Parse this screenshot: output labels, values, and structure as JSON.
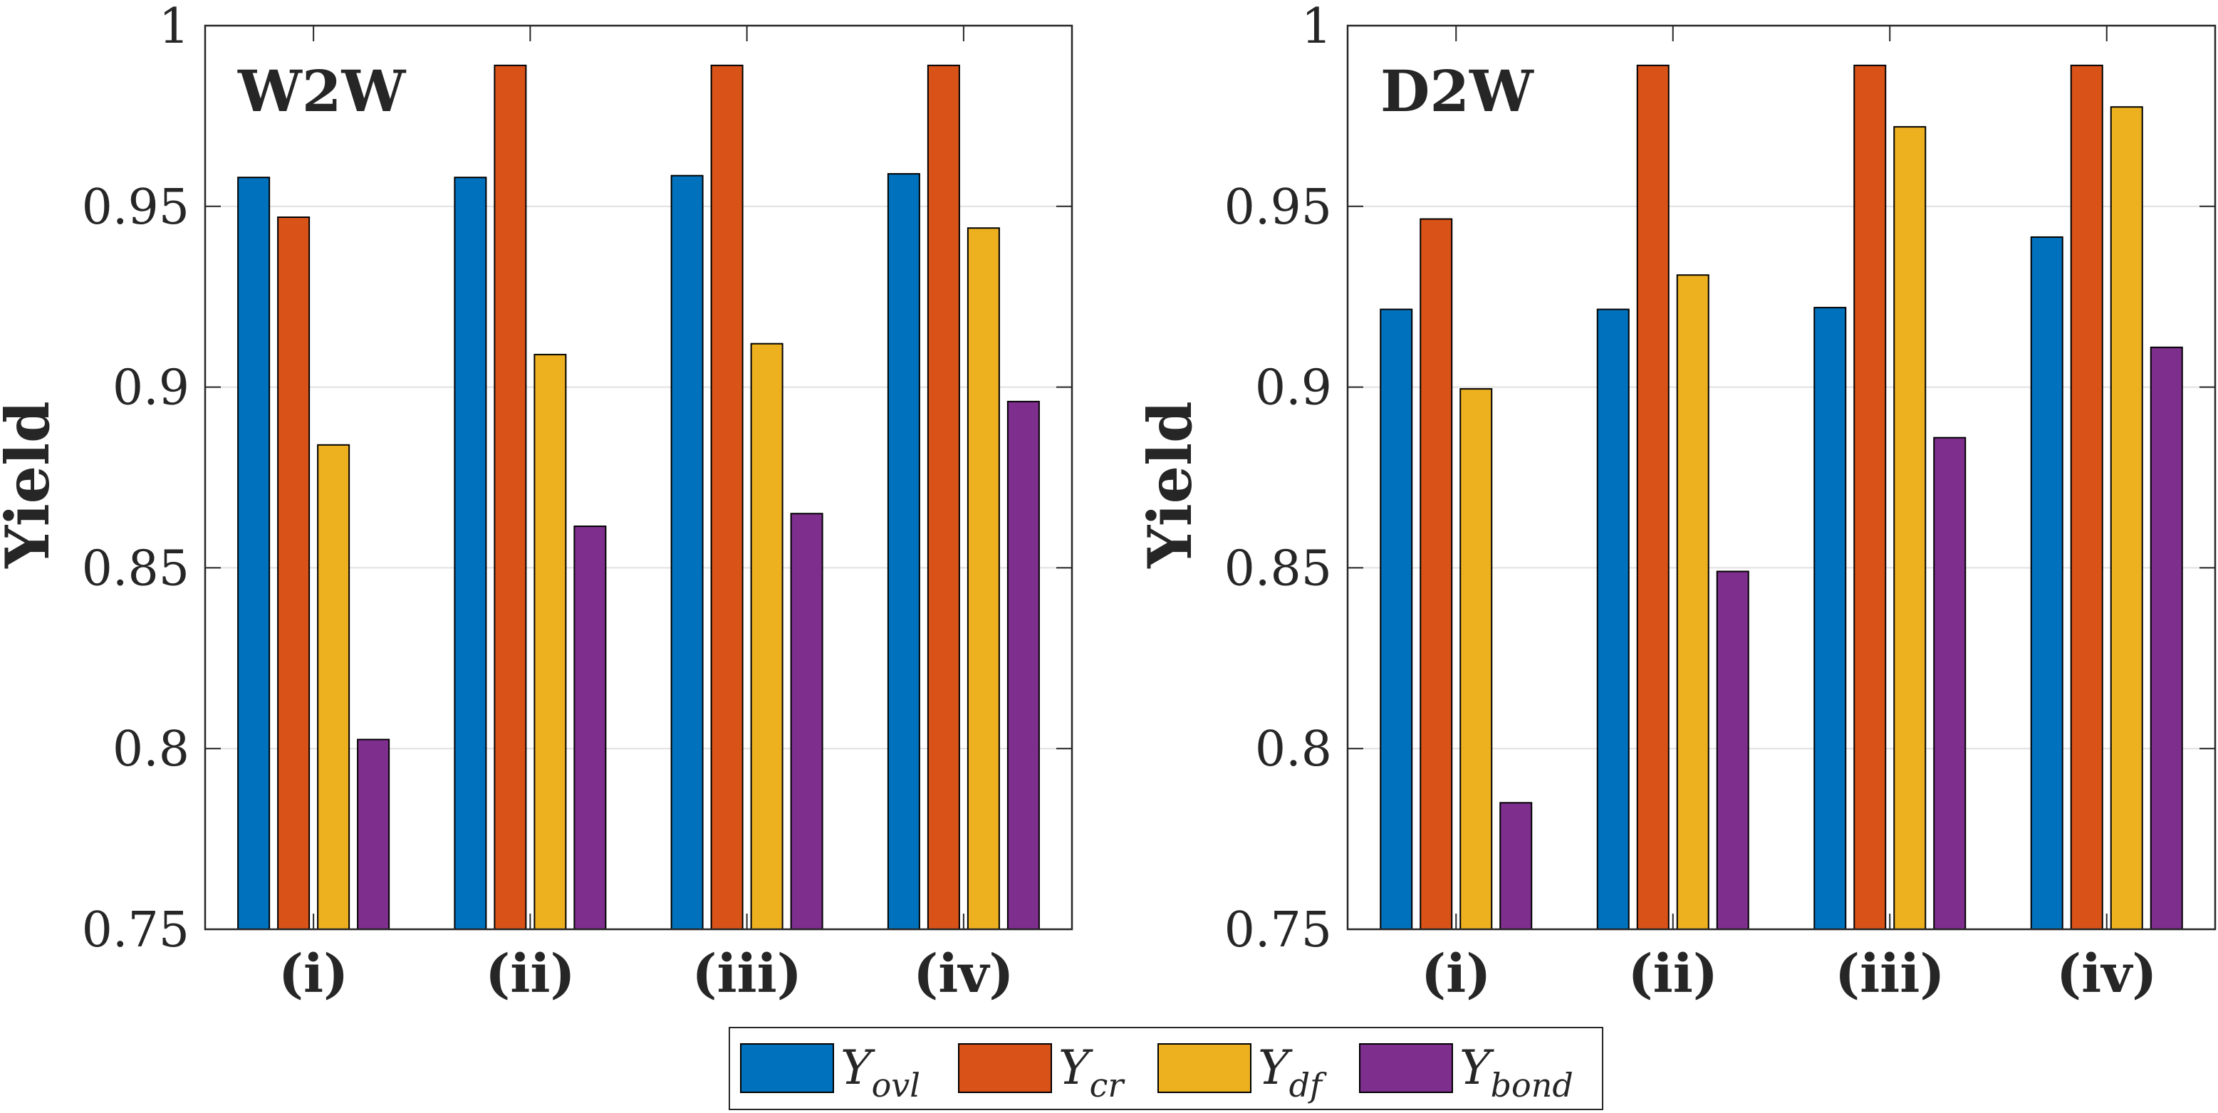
{
  "chart_data": [
    {
      "type": "bar",
      "title": "W2W",
      "xlabel": "",
      "ylabel": "Yield",
      "ylim": [
        0.75,
        1
      ],
      "yticks": [
        "0.75",
        "0.8",
        "0.85",
        "0.9",
        "0.95",
        "1"
      ],
      "grid": true,
      "categories": [
        "(i)",
        "(ii)",
        "(iii)",
        "(iv)"
      ],
      "series": [
        {
          "name": "Y_ovl",
          "values": [
            0.958,
            0.958,
            0.9585,
            0.959
          ]
        },
        {
          "name": "Y_cr",
          "values": [
            0.947,
            0.989,
            0.989,
            0.989
          ]
        },
        {
          "name": "Y_df",
          "values": [
            0.884,
            0.909,
            0.912,
            0.944
          ]
        },
        {
          "name": "Y_bond",
          "values": [
            0.8025,
            0.8615,
            0.865,
            0.896
          ]
        }
      ]
    },
    {
      "type": "bar",
      "title": "D2W",
      "xlabel": "",
      "ylabel": "Yield",
      "ylim": [
        0.75,
        1
      ],
      "yticks": [
        "0.75",
        "0.8",
        "0.85",
        "0.9",
        "0.95",
        "1"
      ],
      "grid": true,
      "categories": [
        "(i)",
        "(ii)",
        "(iii)",
        "(iv)"
      ],
      "series": [
        {
          "name": "Y_ovl",
          "values": [
            0.9215,
            0.9215,
            0.922,
            0.9415
          ]
        },
        {
          "name": "Y_cr",
          "values": [
            0.9465,
            0.989,
            0.989,
            0.989
          ]
        },
        {
          "name": "Y_df",
          "values": [
            0.8995,
            0.931,
            0.972,
            0.9775
          ]
        },
        {
          "name": "Y_bond",
          "values": [
            0.785,
            0.849,
            0.886,
            0.911
          ]
        }
      ]
    }
  ],
  "legend": {
    "placement": "bottom-center",
    "items": [
      {
        "symbol": "Y",
        "subscript": "ovl",
        "color": "#0072BD"
      },
      {
        "symbol": "Y",
        "subscript": "cr",
        "color": "#D95319"
      },
      {
        "symbol": "Y",
        "subscript": "df",
        "color": "#EDB120"
      },
      {
        "symbol": "Y",
        "subscript": "bond",
        "color": "#7E2F8E"
      }
    ]
  },
  "colors": [
    "#0072BD",
    "#D95319",
    "#EDB120",
    "#7E2F8E"
  ]
}
